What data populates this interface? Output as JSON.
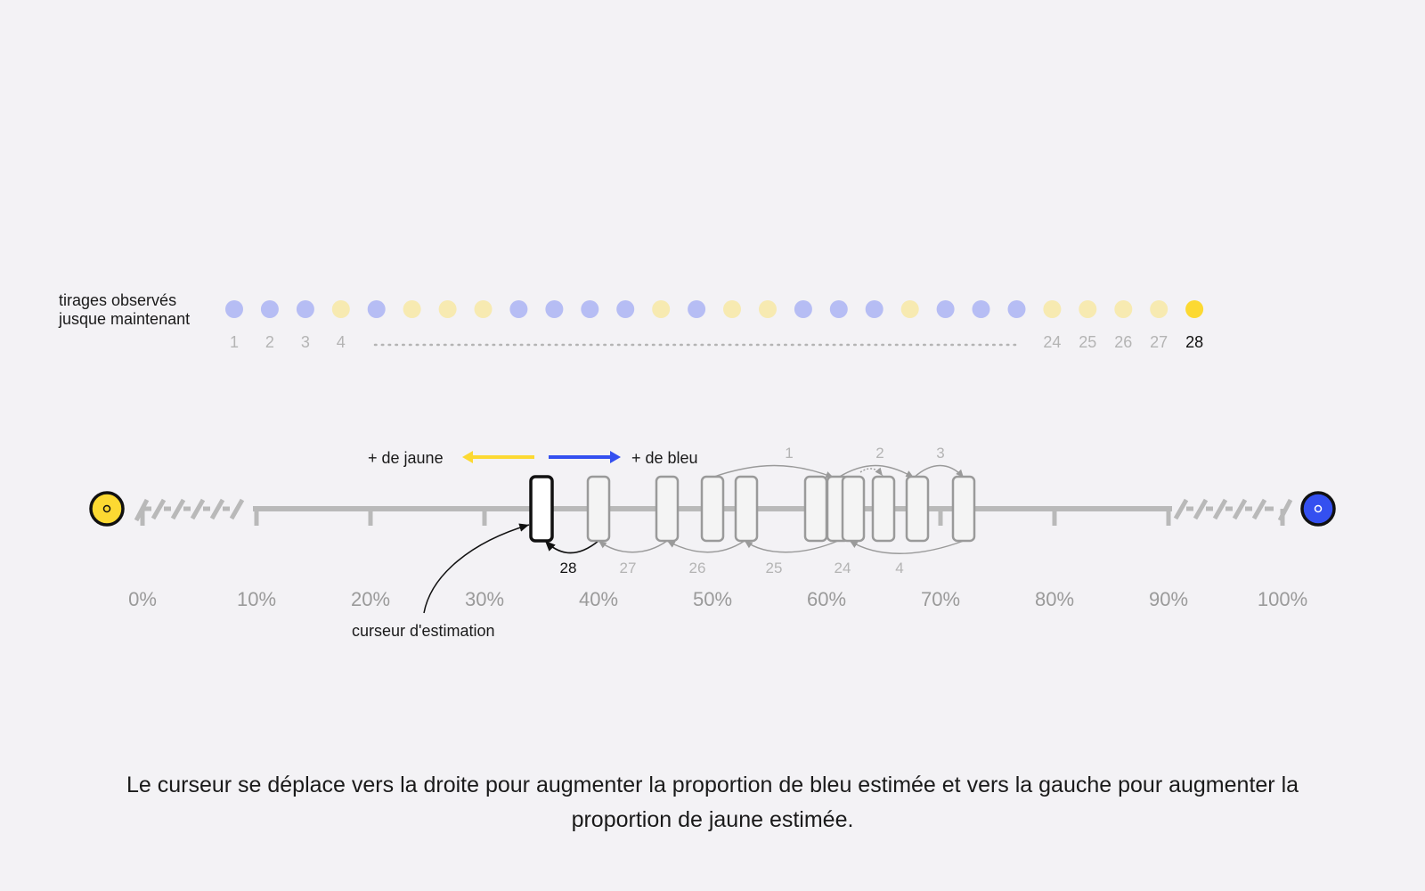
{
  "draws": {
    "label_line1": "tirages observés",
    "label_line2": "jusque maintenant",
    "sequence": [
      "blue",
      "blue",
      "blue",
      "yellow",
      "blue",
      "yellow",
      "yellow",
      "yellow",
      "blue",
      "blue",
      "blue",
      "blue",
      "yellow",
      "blue",
      "yellow",
      "yellow",
      "blue",
      "blue",
      "blue",
      "yellow",
      "blue",
      "blue",
      "blue",
      "yellow",
      "yellow",
      "yellow",
      "yellow",
      "yellow"
    ],
    "number_labels": [
      "1",
      "2",
      "3",
      "4",
      "24",
      "25",
      "26",
      "27",
      "28"
    ],
    "current_draw": 28
  },
  "scale": {
    "tick_labels": [
      "0%",
      "10%",
      "20%",
      "30%",
      "40%",
      "50%",
      "60%",
      "70%",
      "80%",
      "90%",
      "100%"
    ],
    "left_end_icon": "yellow-ball-icon",
    "right_end_icon": "blue-ball-icon"
  },
  "direction": {
    "yellow_label": "+ de jaune",
    "blue_label": "+ de bleu"
  },
  "cursor": {
    "annotation": "curseur d'estimation",
    "current_value_percent": 35,
    "history_labels": {
      "top": [
        "1",
        "2",
        "3"
      ],
      "bottom": [
        "28",
        "27",
        "26",
        "25",
        "24",
        "4"
      ]
    }
  },
  "colors": {
    "yellow": "#fcd932",
    "blue": "#3450f0",
    "blue_faded": "#b6bdf4",
    "yellow_faded": "#f7eab1",
    "track": "#b9b9b9",
    "faded_text": "#b4b4b4"
  },
  "caption": "Le curseur se déplace vers la droite pour augmenter la proportion de bleu estimée et vers la gauche pour augmenter la proportion de jaune estimée."
}
